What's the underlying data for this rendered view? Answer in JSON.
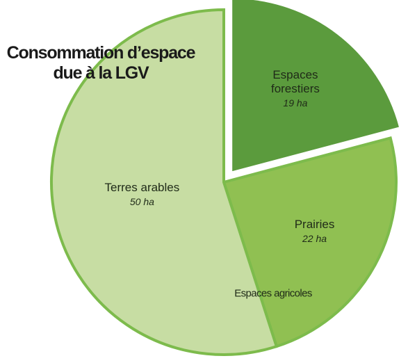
{
  "chart_data": {
    "type": "pie",
    "title": "Consommation d’espace due à la LGV",
    "categories": [
      "Espaces forestiers",
      "Prairies",
      "Terres arables"
    ],
    "values": [
      19,
      22,
      50
    ],
    "value_labels": [
      "19 ha",
      "22 ha",
      "50 ha"
    ],
    "colors": [
      "#5b9b3d",
      "#90c052",
      "#c7dda3"
    ],
    "exploded": [
      true,
      false,
      false
    ],
    "annotation": "Espaces agricoles"
  }
}
